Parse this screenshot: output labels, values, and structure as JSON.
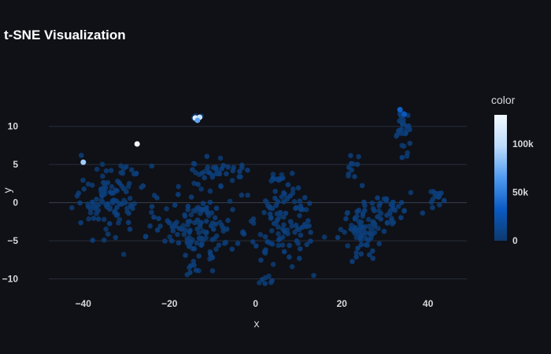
{
  "chart_data": {
    "type": "scatter",
    "title": "t-SNE Visualization",
    "xlabel": "x",
    "ylabel": "y",
    "xlim": [
      -48,
      49
    ],
    "ylim": [
      -11.8,
      14.2
    ],
    "x_ticks": [
      -40,
      -20,
      0,
      20,
      40
    ],
    "x_tick_labels": [
      "−40",
      "−20",
      "0",
      "20",
      "40"
    ],
    "y_ticks": [
      -10,
      -5,
      0,
      5,
      10
    ],
    "y_tick_labels": [
      "−10",
      "−5",
      "0",
      "5",
      "10"
    ],
    "grid": true,
    "colorbar": {
      "title": "color",
      "range": [
        0,
        130000
      ],
      "ticks": [
        0,
        50000,
        100000
      ],
      "tick_labels": [
        "0",
        "50k",
        "100k"
      ],
      "colors": [
        "#0d3a6e",
        "#0a5bc4",
        "#4f9af0",
        "#bcdcfc",
        "#f3f9ff"
      ]
    },
    "highlight_points": [
      {
        "x": -40,
        "y": 5.3,
        "color": 90000
      },
      {
        "x": -27.5,
        "y": 7.7,
        "color": 130000
      },
      {
        "x": -14,
        "y": 11.1,
        "color": 120000
      },
      {
        "x": -13,
        "y": 11.2,
        "color": 105000
      },
      {
        "x": -13.5,
        "y": 10.8,
        "color": 70000
      },
      {
        "x": 33.5,
        "y": 12.2,
        "color": 35000
      },
      {
        "x": 34.5,
        "y": 11.6,
        "color": 30000
      }
    ],
    "clusters": [
      {
        "cx": -34,
        "cy": 0.5,
        "sx": 6,
        "sy": 3.2,
        "n": 110
      },
      {
        "cx": -14,
        "cy": -3,
        "sx": 7,
        "sy": 3.5,
        "n": 130
      },
      {
        "cx": -10,
        "cy": 3.8,
        "sx": 5,
        "sy": 1.7,
        "n": 40
      },
      {
        "cx": -14,
        "cy": 11,
        "sx": 1.2,
        "sy": 0.4,
        "n": 6
      },
      {
        "cx": -15,
        "cy": -8.5,
        "sx": 1.5,
        "sy": 1,
        "n": 5
      },
      {
        "cx": 6,
        "cy": -2.5,
        "sx": 6,
        "sy": 3.8,
        "n": 110
      },
      {
        "cx": 3,
        "cy": -10.2,
        "sx": 1.5,
        "sy": 0.7,
        "n": 5
      },
      {
        "cx": 4,
        "cy": 3.5,
        "sx": 2,
        "sy": 0.8,
        "n": 8
      },
      {
        "cx": 24,
        "cy": -3.5,
        "sx": 4,
        "sy": 2.6,
        "n": 80
      },
      {
        "cx": 22.5,
        "cy": 4.5,
        "sx": 1.2,
        "sy": 1.4,
        "n": 10
      },
      {
        "cx": 31,
        "cy": -1,
        "sx": 4,
        "sy": 1.8,
        "n": 35
      },
      {
        "cx": 34,
        "cy": 10,
        "sx": 1.2,
        "sy": 2,
        "n": 30
      },
      {
        "cx": 42,
        "cy": 1,
        "sx": 1.2,
        "sy": 0.7,
        "n": 15
      }
    ]
  }
}
